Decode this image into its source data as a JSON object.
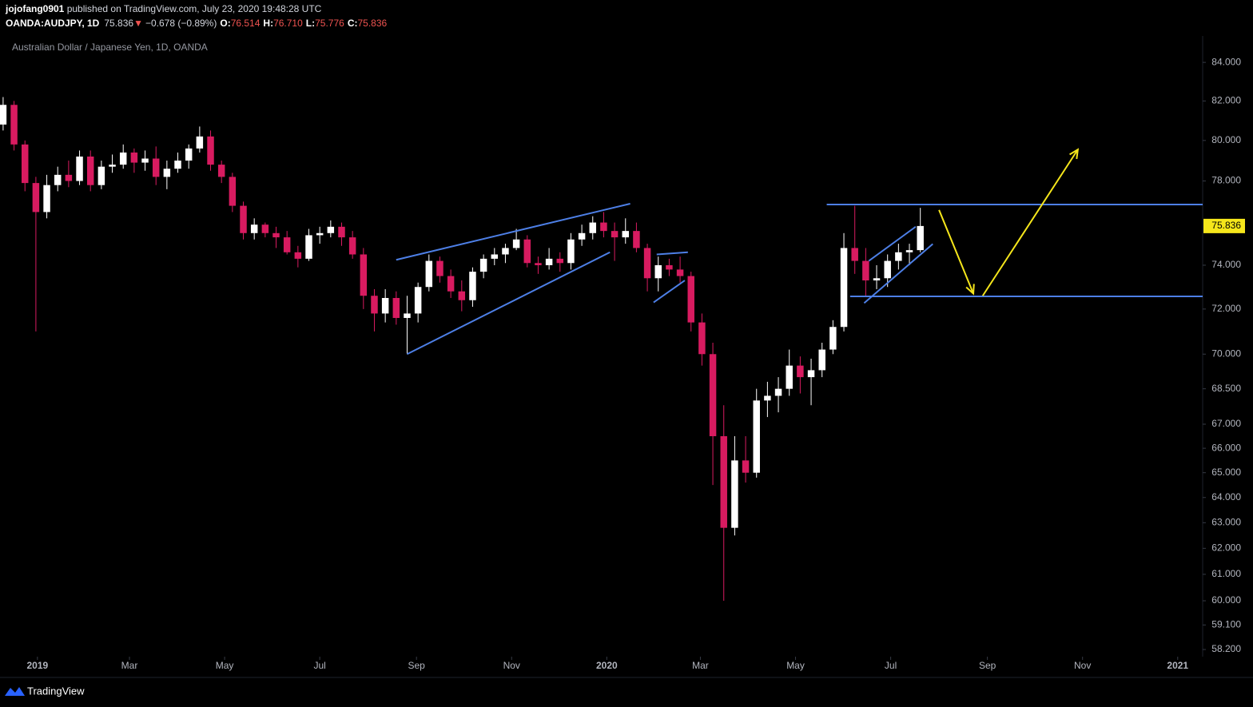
{
  "chart_data": {
    "type": "candlestick",
    "author": "jojofang0901",
    "published": " published on TradingView.com, July 23, 2020 19:48:28 UTC",
    "legend": {
      "symbol": "OANDA:AUDJPY, 1D",
      "last": "75.836",
      "arrow": "▼",
      "change": "−0.678 (−0.89%)",
      "open_label": "O:",
      "open": "76.514",
      "high_label": "H:",
      "high": "76.710",
      "low_label": "L:",
      "low": "75.776",
      "close_label": "C:",
      "close": "75.836"
    },
    "title": "Australian Dollar / Japanese Yen, 1D, OANDA",
    "brand": "TradingView",
    "log_scale": true,
    "grid": false,
    "up_color": "#ffffff",
    "down_color": "#d81b60",
    "last_price": 75.836,
    "last_price_color": "#f5e61b",
    "xlim": [
      "2018-12-08",
      "2021-01-17"
    ],
    "xticks": [
      {
        "value": "2019-01-01",
        "label": "2019"
      },
      {
        "value": "2019-03-01",
        "label": "Mar"
      },
      {
        "value": "2019-05-01",
        "label": "May"
      },
      {
        "value": "2019-07-01",
        "label": "Jul"
      },
      {
        "value": "2019-09-01",
        "label": "Sep"
      },
      {
        "value": "2019-11-01",
        "label": "Nov"
      },
      {
        "value": "2020-01-01",
        "label": "2020"
      },
      {
        "value": "2020-03-01",
        "label": "Mar"
      },
      {
        "value": "2020-05-01",
        "label": "May"
      },
      {
        "value": "2020-07-01",
        "label": "Jul"
      },
      {
        "value": "2020-09-01",
        "label": "Sep"
      },
      {
        "value": "2020-11-01",
        "label": "Nov"
      },
      {
        "value": "2021-01-01",
        "label": "2021"
      }
    ],
    "ylim": [
      57.94,
      85.4
    ],
    "yticks": [
      {
        "value": 84,
        "label": "84.000"
      },
      {
        "value": 82,
        "label": "82.000"
      },
      {
        "value": 80,
        "label": "80.000"
      },
      {
        "value": 78,
        "label": "78.000"
      },
      {
        "value": 74,
        "label": "74.000"
      },
      {
        "value": 72,
        "label": "72.000"
      },
      {
        "value": 70,
        "label": "70.000"
      },
      {
        "value": 68.5,
        "label": "68.500"
      },
      {
        "value": 67,
        "label": "67.000"
      },
      {
        "value": 66,
        "label": "66.000"
      },
      {
        "value": 65,
        "label": "65.000"
      },
      {
        "value": 64,
        "label": "64.000"
      },
      {
        "value": 63,
        "label": "63.000"
      },
      {
        "value": 62,
        "label": "62.000"
      },
      {
        "value": 61,
        "label": "61.000"
      },
      {
        "value": 60,
        "label": "60.000"
      },
      {
        "value": 59.1,
        "label": "59.100"
      },
      {
        "value": 58.2,
        "label": "58.200"
      }
    ],
    "x": [
      "2018-12-10",
      "2018-12-17",
      "2018-12-24",
      "2018-12-31",
      "2019-01-07",
      "2019-01-14",
      "2019-01-21",
      "2019-01-28",
      "2019-02-04",
      "2019-02-11",
      "2019-02-18",
      "2019-02-25",
      "2019-03-04",
      "2019-03-11",
      "2019-03-18",
      "2019-03-25",
      "2019-04-01",
      "2019-04-08",
      "2019-04-15",
      "2019-04-22",
      "2019-04-29",
      "2019-05-06",
      "2019-05-13",
      "2019-05-20",
      "2019-05-27",
      "2019-06-03",
      "2019-06-10",
      "2019-06-17",
      "2019-06-24",
      "2019-07-01",
      "2019-07-08",
      "2019-07-15",
      "2019-07-22",
      "2019-07-29",
      "2019-08-05",
      "2019-08-12",
      "2019-08-19",
      "2019-08-26",
      "2019-09-02",
      "2019-09-09",
      "2019-09-16",
      "2019-09-23",
      "2019-09-30",
      "2019-10-07",
      "2019-10-14",
      "2019-10-21",
      "2019-10-28",
      "2019-11-04",
      "2019-11-11",
      "2019-11-18",
      "2019-11-25",
      "2019-12-02",
      "2019-12-09",
      "2019-12-16",
      "2019-12-23",
      "2019-12-30",
      "2020-01-06",
      "2020-01-13",
      "2020-01-20",
      "2020-01-27",
      "2020-02-03",
      "2020-02-10",
      "2020-02-17",
      "2020-02-24",
      "2020-03-02",
      "2020-03-09",
      "2020-03-16",
      "2020-03-23",
      "2020-03-30",
      "2020-04-06",
      "2020-04-13",
      "2020-04-20",
      "2020-04-27",
      "2020-05-04",
      "2020-05-11",
      "2020-05-18",
      "2020-05-25",
      "2020-06-01",
      "2020-06-08",
      "2020-06-15",
      "2020-06-22",
      "2020-06-29",
      "2020-07-06",
      "2020-07-13",
      "2020-07-20"
    ],
    "open": [
      80.8,
      81.8,
      79.8,
      77.9,
      76.5,
      77.8,
      78.3,
      78.0,
      79.2,
      77.8,
      78.7,
      78.8,
      79.4,
      78.9,
      79.1,
      78.2,
      78.6,
      79.0,
      79.6,
      80.2,
      78.8,
      78.2,
      76.8,
      75.5,
      75.9,
      75.5,
      75.3,
      74.6,
      74.3,
      75.4,
      75.5,
      75.8,
      75.3,
      74.5,
      72.6,
      71.8,
      72.5,
      71.6,
      71.8,
      73.0,
      74.2,
      73.5,
      72.8,
      72.4,
      73.7,
      74.3,
      74.5,
      74.8,
      75.2,
      74.1,
      74.0,
      74.3,
      74.1,
      75.2,
      75.5,
      76.0,
      75.6,
      75.3,
      75.6,
      74.8,
      73.4,
      74.0,
      73.8,
      73.5,
      71.4,
      70.0,
      66.5,
      62.8,
      65.5,
      65.0,
      68.0,
      68.2,
      68.5,
      69.5,
      69.0,
      69.3,
      70.2,
      71.2,
      74.8,
      74.2,
      73.3,
      73.4,
      74.2,
      74.6,
      74.7
    ],
    "high": [
      82.2,
      82.0,
      80.0,
      78.2,
      78.3,
      78.7,
      79.0,
      79.5,
      79.5,
      79.0,
      79.3,
      79.8,
      79.6,
      79.5,
      79.7,
      79.0,
      79.4,
      79.8,
      80.7,
      80.5,
      79.0,
      78.4,
      77.0,
      76.2,
      76.0,
      75.8,
      75.6,
      74.9,
      75.7,
      75.8,
      76.1,
      76.0,
      75.6,
      74.8,
      72.9,
      72.9,
      72.8,
      72.6,
      73.2,
      74.5,
      74.4,
      73.8,
      73.3,
      73.9,
      74.5,
      74.8,
      75.0,
      75.7,
      75.4,
      74.4,
      74.8,
      74.6,
      75.5,
      75.9,
      76.3,
      76.5,
      76.0,
      76.2,
      76.0,
      75.0,
      74.4,
      74.3,
      74.4,
      73.7,
      71.8,
      70.5,
      67.8,
      66.5,
      66.5,
      68.5,
      68.8,
      69.0,
      70.2,
      69.9,
      69.8,
      70.5,
      71.5,
      75.5,
      76.8,
      74.8,
      74.0,
      74.5,
      75.0,
      75.0,
      76.7
    ],
    "low": [
      80.5,
      79.5,
      77.5,
      71.0,
      76.2,
      77.5,
      77.7,
      77.8,
      77.5,
      77.6,
      78.4,
      78.6,
      78.4,
      78.5,
      77.8,
      77.6,
      78.4,
      78.6,
      79.4,
      78.5,
      77.9,
      76.5,
      75.2,
      75.2,
      75.3,
      74.8,
      74.5,
      73.9,
      74.2,
      75.0,
      75.3,
      74.9,
      74.3,
      72.0,
      71.0,
      71.4,
      71.3,
      70.0,
      71.4,
      72.8,
      73.2,
      72.5,
      71.9,
      72.1,
      73.4,
      74.0,
      74.1,
      74.7,
      73.9,
      73.6,
      73.8,
      73.7,
      73.8,
      74.9,
      75.2,
      75.3,
      74.2,
      75.0,
      74.6,
      72.8,
      72.8,
      73.5,
      73.2,
      71.0,
      69.5,
      64.5,
      60.0,
      62.5,
      64.6,
      64.8,
      67.3,
      67.5,
      68.2,
      68.3,
      67.8,
      69.0,
      70.0,
      71.0,
      73.6,
      72.6,
      72.9,
      73.0,
      73.8,
      74.0,
      74.6
    ],
    "close": [
      81.8,
      79.8,
      77.9,
      76.5,
      77.8,
      78.3,
      78.0,
      79.2,
      77.8,
      78.7,
      78.8,
      79.4,
      78.9,
      79.1,
      78.2,
      78.6,
      79.0,
      79.6,
      80.2,
      78.8,
      78.2,
      76.8,
      75.5,
      75.9,
      75.5,
      75.3,
      74.6,
      74.3,
      75.4,
      75.5,
      75.8,
      75.3,
      74.5,
      72.6,
      71.8,
      72.5,
      71.6,
      71.8,
      73.0,
      74.2,
      73.5,
      72.8,
      72.4,
      73.7,
      74.3,
      74.5,
      74.8,
      75.2,
      74.1,
      74.0,
      74.3,
      74.1,
      75.2,
      75.5,
      76.0,
      75.6,
      75.3,
      75.6,
      74.8,
      73.4,
      74.0,
      73.8,
      73.5,
      71.4,
      70.0,
      66.5,
      62.8,
      65.5,
      65.0,
      68.0,
      68.2,
      68.5,
      69.5,
      69.0,
      69.3,
      70.2,
      71.2,
      74.8,
      74.2,
      73.3,
      73.4,
      74.2,
      74.6,
      74.7,
      75.836
    ],
    "drawings": [
      {
        "color": "#4d7fe6",
        "arrow": false,
        "x": [
          "2019-08-19",
          "2020-01-16"
        ],
        "y": [
          74.25,
          76.9
        ]
      },
      {
        "color": "#4d7fe6",
        "arrow": false,
        "x": [
          "2019-08-26",
          "2020-01-03"
        ],
        "y": [
          70.0,
          74.6
        ]
      },
      {
        "color": "#4d7fe6",
        "arrow": false,
        "x": [
          "2020-02-02",
          "2020-02-22"
        ],
        "y": [
          74.5,
          74.6
        ]
      },
      {
        "color": "#4d7fe6",
        "arrow": false,
        "x": [
          "2020-01-31",
          "2020-02-20"
        ],
        "y": [
          72.3,
          73.3
        ]
      },
      {
        "color": "#4d7fe6",
        "arrow": false,
        "x": [
          "2020-05-21",
          "2021-01-17"
        ],
        "y": [
          76.86,
          76.86
        ]
      },
      {
        "color": "#4d7fe6",
        "arrow": false,
        "x": [
          "2020-06-05",
          "2021-01-17"
        ],
        "y": [
          72.57,
          72.57
        ]
      },
      {
        "color": "#4d7fe6",
        "arrow": false,
        "x": [
          "2020-06-17",
          "2020-07-17"
        ],
        "y": [
          74.2,
          75.8
        ]
      },
      {
        "color": "#4d7fe6",
        "arrow": false,
        "x": [
          "2020-06-14",
          "2020-07-28"
        ],
        "y": [
          72.27,
          74.99
        ]
      },
      {
        "color": "#f5e61b",
        "arrow": true,
        "x": [
          "2020-08-01",
          "2020-08-23"
        ],
        "y": [
          76.6,
          72.7
        ]
      },
      {
        "color": "#f5e61b",
        "arrow": true,
        "x": [
          "2020-08-29",
          "2020-10-29"
        ],
        "y": [
          72.6,
          79.55
        ]
      }
    ]
  }
}
